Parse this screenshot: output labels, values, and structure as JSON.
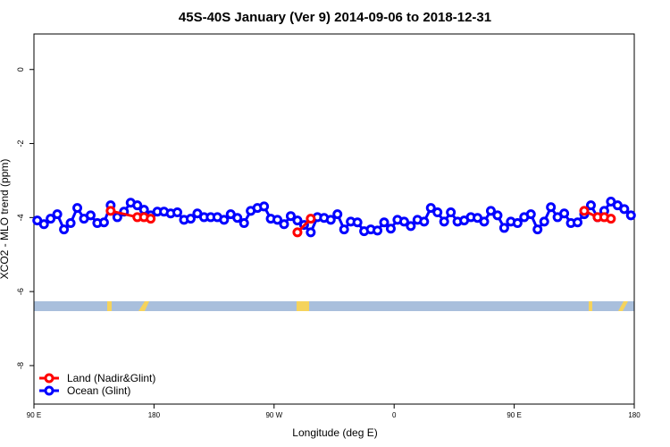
{
  "chart_data": {
    "type": "line",
    "title": "45S-40S January (Ver 9)   2014-09-06 to 2018-12-31",
    "x_label": "Longitude (deg E)",
    "y_label": "XCO2 - MLO trend (ppm)",
    "xlim": [
      90,
      540
    ],
    "xticks": [
      {
        "value": 90,
        "label": "90 E"
      },
      180,
      {
        "value": 270,
        "label": "90 W"
      },
      {
        "value": 360,
        "label": "0"
      },
      {
        "value": 450,
        "label": "90 E"
      },
      {
        "value": 540,
        "label": "180"
      }
    ],
    "ylim": [
      -9.04,
      0.96
    ],
    "yticks": [
      0,
      -2,
      -4,
      -6,
      -8
    ],
    "legend": "bottom-left",
    "series": [
      {
        "name": "Ocean (Glint)",
        "color": "#0000ff",
        "x": [
          92.5,
          97.5,
          102.5,
          107.5,
          112.5,
          117.5,
          122.5,
          127.5,
          132.5,
          137.5,
          142.5,
          147.5,
          152.5,
          157.5,
          162.5,
          167.5,
          172.5,
          177.5,
          182.5,
          187.5,
          192.5,
          197.5,
          202.5,
          207.5,
          212.5,
          217.5,
          222.5,
          227.5,
          232.5,
          237.5,
          242.5,
          247.5,
          252.5,
          257.5,
          262.5,
          267.5,
          272.5,
          277.5,
          282.5,
          287.5,
          292.5,
          297.5,
          302.5,
          307.5,
          312.5,
          317.5,
          322.5,
          327.5,
          332.5,
          337.5,
          342.5,
          347.5,
          352.5,
          357.5,
          362.5,
          367.5,
          372.5,
          377.5,
          382.5,
          387.5,
          392.5,
          397.5,
          402.5,
          407.5,
          412.5,
          417.5,
          422.5,
          427.5,
          432.5,
          437.5,
          442.5,
          447.5,
          452.5,
          457.5,
          462.5,
          467.5,
          472.5,
          477.5,
          482.5,
          487.5,
          492.5,
          497.5,
          502.5,
          507.5,
          512.5,
          517.5,
          522.5,
          527.5,
          532.5,
          537.5
        ],
        "values": [
          -4.08,
          -4.18,
          -4.03,
          -3.91,
          -4.32,
          -4.15,
          -3.74,
          -4.03,
          -3.94,
          -4.15,
          -4.13,
          -3.67,
          -3.99,
          -3.84,
          -3.6,
          -3.67,
          -3.79,
          -3.94,
          -3.84,
          -3.84,
          -3.89,
          -3.86,
          -4.06,
          -4.03,
          -3.89,
          -3.99,
          -3.99,
          -3.99,
          -4.06,
          -3.91,
          -4.01,
          -4.15,
          -3.82,
          -3.74,
          -3.7,
          -4.03,
          -4.06,
          -4.18,
          -3.96,
          -4.08,
          -4.2,
          -4.4,
          -3.99,
          -4.01,
          -4.06,
          -3.91,
          -4.32,
          -4.11,
          -4.13,
          -4.37,
          -4.32,
          -4.35,
          -4.13,
          -4.3,
          -4.06,
          -4.11,
          -4.23,
          -4.06,
          -4.11,
          -3.74,
          -3.86,
          -4.11,
          -3.86,
          -4.11,
          -4.08,
          -3.99,
          -4.01,
          -4.11,
          -3.82,
          -3.94,
          -4.28,
          -4.11,
          -4.15,
          -3.99,
          -3.91,
          -4.32,
          -4.11,
          -3.72,
          -3.99,
          -3.89,
          -4.15,
          -4.13,
          -3.91,
          -3.67,
          -3.99,
          -3.82,
          -3.57,
          -3.67,
          -3.77,
          -3.94
        ]
      },
      {
        "name": "Land (Nadir&Glint)",
        "color": "#ff0000",
        "x": [
          147.5,
          167.5,
          172.5,
          177.5,
          232.5,
          287.5,
          297.5,
          402.5,
          502.5,
          512.5,
          517.5,
          522.5
        ],
        "values": [
          -3.82,
          -3.99,
          -3.99,
          -4.03,
          null,
          -4.4,
          -4.03,
          null,
          -3.82,
          -3.99,
          -3.99,
          -4.03
        ]
      }
    ]
  }
}
